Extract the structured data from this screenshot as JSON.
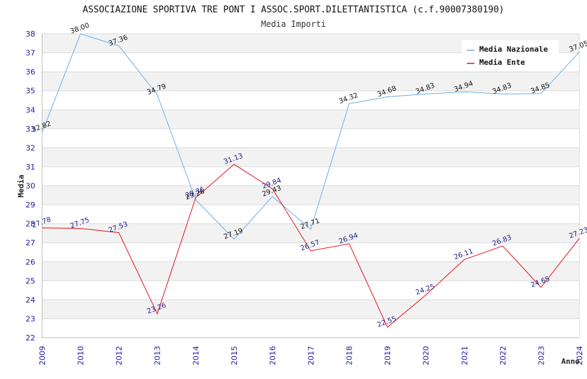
{
  "chart_data": {
    "type": "line",
    "title": "ASSOCIAZIONE SPORTIVA TRE PONT I ASSOC.SPORT.DILETTANTISTICA (c.f.90007380190)",
    "subtitle": "Media Importi",
    "xlabel": "Anno",
    "ylabel": "Media",
    "ylim": [
      22,
      38
    ],
    "yticks": [
      "22",
      "23",
      "24",
      "25",
      "26",
      "27",
      "28",
      "29",
      "30",
      "31",
      "32",
      "33",
      "34",
      "35",
      "36",
      "37",
      "38"
    ],
    "categories": [
      "2009",
      "2010",
      "2012",
      "2013",
      "2014",
      "2015",
      "2016",
      "2017",
      "2018",
      "2019",
      "2020",
      "2021",
      "2022",
      "2023",
      "2024"
    ],
    "series": [
      {
        "name": "Media Nazionale",
        "color": "#6aaee8",
        "label_color": "#111111",
        "values": [
          32.82,
          38.0,
          37.36,
          34.79,
          29.26,
          27.19,
          29.43,
          27.71,
          34.32,
          34.68,
          34.83,
          34.94,
          34.83,
          34.85,
          37.05
        ],
        "labels": [
          "32.82",
          "38.00",
          "37.36",
          "34.79",
          "29.26",
          "27.19",
          "29.43",
          "27.71",
          "34.32",
          "34.68",
          "34.83",
          "34.94",
          "34.83",
          "34.85",
          "37.05"
        ]
      },
      {
        "name": "Media Ente",
        "color": "#e8101a",
        "label_color": "#1a1a8a",
        "values": [
          27.78,
          27.75,
          27.53,
          23.26,
          29.36,
          31.13,
          29.84,
          26.57,
          26.94,
          22.55,
          24.25,
          26.11,
          26.83,
          24.65,
          27.23
        ],
        "labels": [
          "27.78",
          "27.75",
          "27.53",
          "23.26",
          "29.36",
          "31.13",
          "29.84",
          "26.57",
          "26.94",
          "22.55",
          "24.25",
          "26.11",
          "26.83",
          "24.65",
          "27.23"
        ]
      }
    ],
    "grid": true,
    "legend": "top-right"
  }
}
